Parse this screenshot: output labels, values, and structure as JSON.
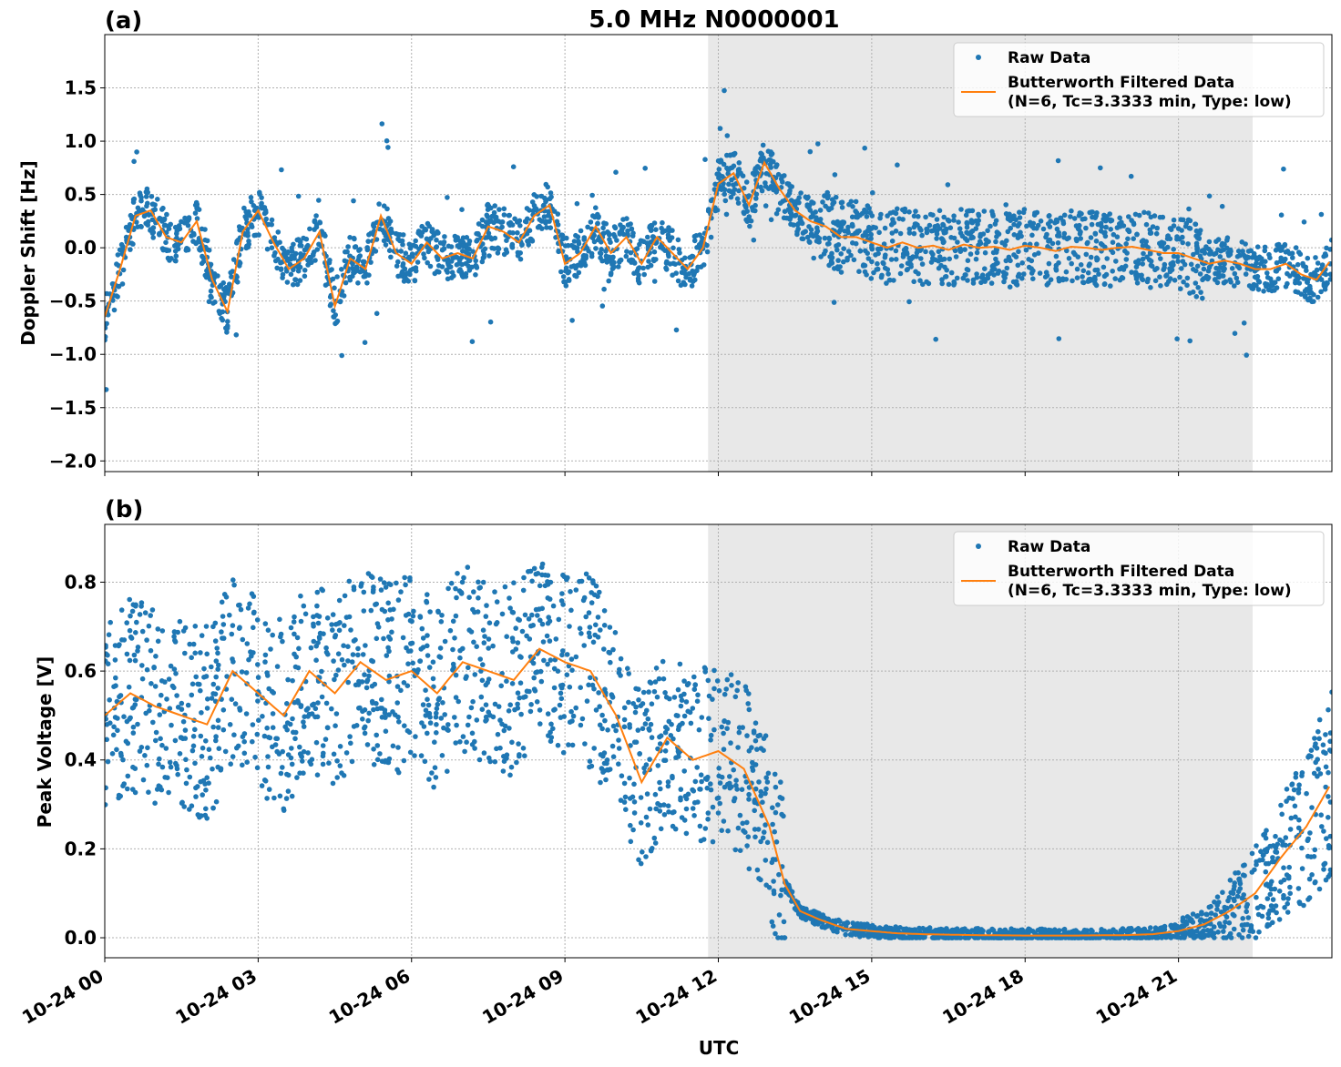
{
  "figure": {
    "title": "5.0 MHz N0000001",
    "xlabel": "UTC",
    "x_tick_labels": [
      "10-24 00",
      "10-24 03",
      "10-24 06",
      "10-24 09",
      "10-24 12",
      "10-24 15",
      "10-24 18",
      "10-24 21"
    ],
    "colors": {
      "raw": "#1f77b4",
      "filtered": "#ff7f0e",
      "shade": "#e8e8e8",
      "grid": "#b0b0b0"
    }
  },
  "chart_data": [
    {
      "type": "scatter",
      "panel_label": "(a)",
      "ylabel": "Doppler Shift [Hz]",
      "ylim": [
        -2.1,
        2.0
      ],
      "y_ticks": [
        -2.0,
        -1.5,
        -1.0,
        -0.5,
        0.0,
        0.5,
        1.0,
        1.5
      ],
      "y_tick_labels": [
        "−2.0",
        "−1.5",
        "−1.0",
        "−0.5",
        "0.0",
        "0.5",
        "1.0",
        "1.5"
      ],
      "xlim_hours": [
        0,
        24
      ],
      "shaded_span_hours": [
        11.8,
        22.45
      ],
      "legend": [
        "Raw Data",
        "Butterworth Filtered Data",
        "(N=6, Tc=3.3333 min, Type: low)"
      ],
      "series": [
        {
          "name": "Butterworth Filtered Data",
          "x": [
            0,
            0.3,
            0.6,
            0.9,
            1.2,
            1.5,
            1.8,
            2.1,
            2.4,
            2.7,
            3.0,
            3.3,
            3.6,
            3.9,
            4.2,
            4.5,
            4.8,
            5.1,
            5.4,
            5.7,
            6.0,
            6.3,
            6.6,
            6.9,
            7.2,
            7.5,
            7.8,
            8.1,
            8.4,
            8.7,
            9.0,
            9.3,
            9.6,
            9.9,
            10.2,
            10.5,
            10.8,
            11.1,
            11.4,
            11.7,
            12.0,
            12.3,
            12.6,
            12.9,
            13.2,
            13.5,
            13.8,
            14.1,
            14.4,
            14.7,
            15.0,
            15.3,
            15.6,
            15.9,
            16.2,
            16.5,
            16.8,
            17.1,
            17.4,
            17.7,
            18.0,
            18.3,
            18.6,
            18.9,
            19.2,
            19.5,
            19.8,
            20.1,
            20.4,
            20.7,
            21.0,
            21.3,
            21.6,
            21.9,
            22.2,
            22.5,
            22.8,
            23.1,
            23.4,
            23.7,
            24.0
          ],
          "y": [
            -0.65,
            -0.2,
            0.3,
            0.35,
            0.1,
            0.05,
            0.25,
            -0.3,
            -0.6,
            0.15,
            0.35,
            0.05,
            -0.2,
            -0.1,
            0.15,
            -0.55,
            -0.1,
            -0.2,
            0.3,
            -0.05,
            -0.15,
            0.05,
            -0.1,
            -0.05,
            -0.1,
            0.2,
            0.15,
            0.05,
            0.3,
            0.4,
            -0.15,
            -0.05,
            0.2,
            -0.05,
            0.1,
            -0.15,
            0.1,
            -0.05,
            -0.2,
            0.0,
            0.6,
            0.7,
            0.4,
            0.8,
            0.55,
            0.35,
            0.25,
            0.2,
            0.1,
            0.1,
            0.05,
            0.0,
            0.05,
            0.0,
            0.02,
            -0.02,
            0.03,
            0.0,
            0.01,
            -0.02,
            0.02,
            0.0,
            -0.03,
            0.01,
            0.0,
            -0.02,
            0.0,
            0.01,
            -0.02,
            -0.05,
            -0.05,
            -0.1,
            -0.15,
            -0.12,
            -0.15,
            -0.2,
            -0.2,
            -0.15,
            -0.25,
            -0.3,
            -0.1
          ]
        }
      ]
    },
    {
      "type": "scatter",
      "panel_label": "(b)",
      "ylabel": "Peak Voltage [V]",
      "ylim": [
        -0.045,
        0.93
      ],
      "y_ticks": [
        0.0,
        0.2,
        0.4,
        0.6,
        0.8
      ],
      "y_tick_labels": [
        "0.0",
        "0.2",
        "0.4",
        "0.6",
        "0.8"
      ],
      "xlim_hours": [
        0,
        24
      ],
      "shaded_span_hours": [
        11.8,
        22.45
      ],
      "legend": [
        "Raw Data",
        "Butterworth Filtered Data",
        "(N=6, Tc=3.3333 min, Type: low)"
      ],
      "series": [
        {
          "name": "Butterworth Filtered Data",
          "x": [
            0,
            0.5,
            1.0,
            1.5,
            2.0,
            2.5,
            3.0,
            3.5,
            4.0,
            4.5,
            5.0,
            5.5,
            6.0,
            6.5,
            7.0,
            7.5,
            8.0,
            8.5,
            9.0,
            9.5,
            10.0,
            10.5,
            11.0,
            11.5,
            12.0,
            12.5,
            13.0,
            13.3,
            13.6,
            14.0,
            14.5,
            15.0,
            15.5,
            16.0,
            17.0,
            18.0,
            19.0,
            20.0,
            20.5,
            21.0,
            21.5,
            22.0,
            22.5,
            23.0,
            23.5,
            24.0
          ],
          "y": [
            0.5,
            0.55,
            0.52,
            0.5,
            0.48,
            0.6,
            0.55,
            0.5,
            0.6,
            0.55,
            0.62,
            0.58,
            0.6,
            0.55,
            0.62,
            0.6,
            0.58,
            0.65,
            0.62,
            0.6,
            0.5,
            0.35,
            0.45,
            0.4,
            0.42,
            0.38,
            0.25,
            0.12,
            0.06,
            0.04,
            0.02,
            0.015,
            0.01,
            0.008,
            0.006,
            0.005,
            0.005,
            0.006,
            0.008,
            0.015,
            0.03,
            0.06,
            0.1,
            0.18,
            0.25,
            0.35
          ]
        }
      ]
    }
  ]
}
